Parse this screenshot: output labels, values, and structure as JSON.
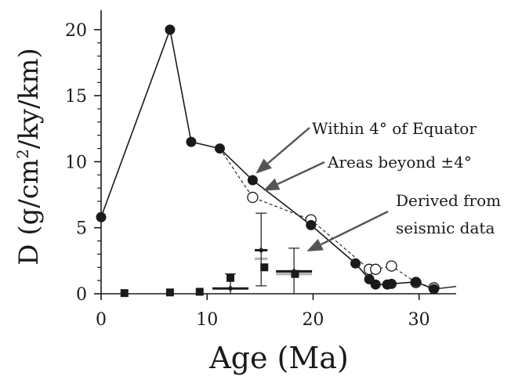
{
  "chart_data": {
    "type": "scatter",
    "title": "",
    "xlabel": "Age (Ma)",
    "ylabel_parts": [
      "D (g/cm",
      "2",
      "/ky/km)"
    ],
    "xlim": [
      0,
      33.5
    ],
    "ylim": [
      0,
      21
    ],
    "xticks": [
      0,
      10,
      20,
      30
    ],
    "yticks": [
      0,
      5,
      10,
      15,
      20
    ],
    "grid": false,
    "legend": "none",
    "series": [
      {
        "points": [
          [
            0,
            5.8
          ],
          [
            6.5,
            20
          ],
          [
            8.5,
            11.5
          ],
          [
            11.2,
            11.0
          ],
          [
            14.3,
            8.6
          ],
          [
            19.8,
            5.2
          ],
          [
            24.0,
            2.3
          ],
          [
            25.3,
            1.1
          ],
          [
            25.9,
            0.7
          ],
          [
            27.0,
            0.7
          ],
          [
            27.4,
            0.75
          ],
          [
            29.7,
            0.9
          ],
          [
            31.4,
            0.35
          ]
        ],
        "style": "filled-circle-solid-line",
        "color": "#1a1a1a"
      },
      {
        "points": [
          [
            11.2,
            11.0
          ],
          [
            14.3,
            7.3
          ],
          [
            19.8,
            5.6
          ],
          [
            25.3,
            1.85
          ],
          [
            25.9,
            1.85
          ],
          [
            27.4,
            2.1
          ],
          [
            29.7,
            0.85
          ],
          [
            31.4,
            0.45
          ]
        ],
        "style": "open-circle-dashed-line",
        "color": "#1a1a1a"
      },
      {
        "points": [
          [
            2.2,
            0.05
          ],
          [
            6.5,
            0.1
          ],
          [
            9.3,
            0.15
          ],
          [
            12.2,
            1.2
          ],
          [
            15.4,
            2.0
          ],
          [
            18.3,
            1.5
          ]
        ],
        "style": "filled-square",
        "color": "#1a1a1a"
      },
      {
        "points": [
          {
            "x": 12.2,
            "y": 0.4,
            "xerr": 1.7,
            "yerr_low": 0.4,
            "yerr_high": 1.1
          },
          {
            "x": 15.1,
            "y": 3.3,
            "xerr": 0.6,
            "yerr_low": 2.7,
            "yerr_high": 2.8
          },
          {
            "x": 18.2,
            "y": 1.7,
            "xerr": 1.7,
            "yerr_low": 1.7,
            "yerr_high": 1.75
          }
        ],
        "style": "small-diamond-errorbars",
        "color": "#1a1a1a",
        "gray_marks": [
          {
            "x": 15.1,
            "y": 2.65,
            "half_width": 0.6
          },
          {
            "x": 18.2,
            "y": 1.5,
            "half_width": 1.7
          }
        ],
        "gray_color": "#b8b8b8"
      }
    ],
    "tail_line": [
      [
        31.4,
        0.35
      ],
      [
        33.5,
        0.55
      ]
    ],
    "annotations": [
      {
        "text": "Within 4° of Equator",
        "arrow_to": [
          14.6,
          9.1
        ]
      },
      {
        "text": "Areas beyond ±4°",
        "arrow_to": [
          15.3,
          7.8
        ]
      },
      {
        "text": "Derived from",
        "text2": "seismic data",
        "arrow_to": [
          19.4,
          3.2
        ]
      }
    ],
    "arrow_color": "#555555"
  }
}
